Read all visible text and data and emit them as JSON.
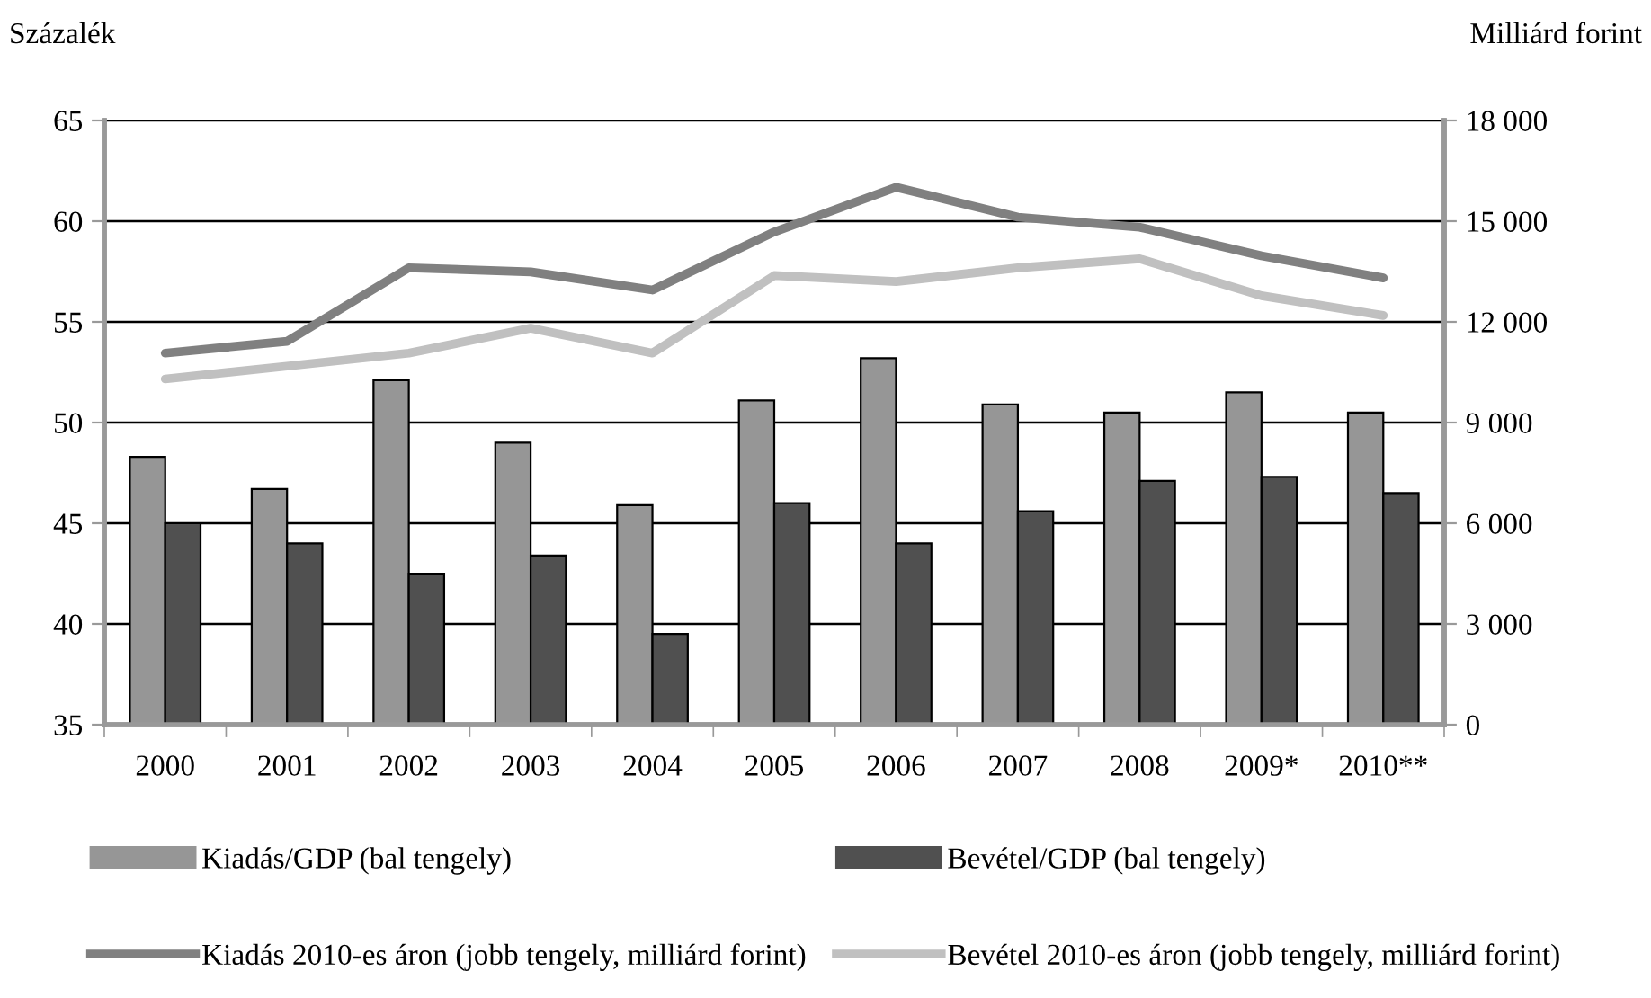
{
  "chart_data": {
    "type": "bar",
    "ylabel": "Százalék",
    "y2label": "Milliárd forint",
    "categories": [
      "2000",
      "2001",
      "2002",
      "2003",
      "2004",
      "2005",
      "2006",
      "2007",
      "2008",
      "2009*",
      "2010**"
    ],
    "series": [
      {
        "name": "Kiadás/GDP (bal tengely)",
        "color": "#969696",
        "values": [
          48.3,
          46.7,
          52.1,
          49.0,
          45.9,
          51.1,
          53.2,
          50.9,
          50.5,
          51.5,
          50.5
        ]
      },
      {
        "name": "Bevétel/GDP (bal tengely)",
        "color": "#505050",
        "values": [
          45.0,
          44.0,
          42.5,
          43.4,
          39.5,
          46.0,
          44.0,
          45.6,
          47.1,
          47.3,
          46.5
        ]
      },
      {
        "name": "Kiadás 2010-es áron (jobb tengely, milliárd forint)",
        "type": "line",
        "axis": "y2",
        "color": "#808080",
        "values": [
          11070,
          11420,
          13610,
          13490,
          12950,
          14680,
          16010,
          15120,
          14820,
          13970,
          13310
        ]
      },
      {
        "name": "Bevétel 2010-es áron (jobb tengely, milliárd forint)",
        "type": "line",
        "axis": "y2",
        "color": "#c0c0c0",
        "values": [
          10300,
          10680,
          11070,
          11810,
          11070,
          13380,
          13200,
          13610,
          13880,
          12780,
          12190
        ]
      }
    ],
    "ylim": [
      35,
      65
    ],
    "yticks": [
      35,
      40,
      45,
      50,
      55,
      60,
      65
    ],
    "y2lim": [
      0,
      18000
    ],
    "y2ticks": [
      0,
      {
        "value": 3000,
        "label": "3 000"
      },
      {
        "value": 6000,
        "label": "6 000"
      },
      {
        "value": 9000,
        "label": "9 000"
      },
      {
        "value": 12000,
        "label": "12 000"
      },
      {
        "value": 15000,
        "label": "15 000"
      },
      {
        "value": 18000,
        "label": "18 000"
      }
    ],
    "grid": "y",
    "legend": "bottom",
    "line_style": "solid",
    "marker": "none"
  }
}
